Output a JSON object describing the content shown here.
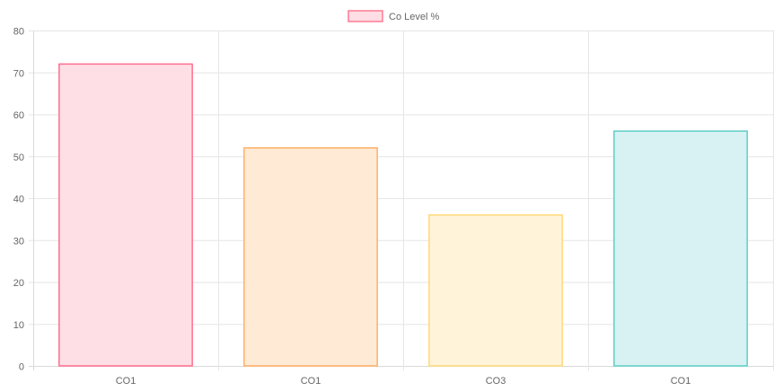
{
  "chart_data": {
    "type": "bar",
    "categories": [
      "CO1",
      "CO1",
      "CO3",
      "CO1"
    ],
    "series": [
      {
        "name": "Co Level %",
        "values": [
          72,
          52,
          36,
          56
        ]
      }
    ],
    "ylim": [
      0,
      80
    ],
    "yticks": [
      0,
      10,
      20,
      30,
      40,
      50,
      60,
      70,
      80
    ],
    "grid": true,
    "legend": {
      "position": "top-center",
      "label": "Co Level %",
      "fill": "#ffdde4",
      "stroke": "#ff7a94"
    },
    "bar_colors": [
      {
        "fill": "#ffdfe6",
        "stroke": "#ff6f8f"
      },
      {
        "fill": "#ffead6",
        "stroke": "#ffb065"
      },
      {
        "fill": "#fff3da",
        "stroke": "#ffd87a"
      },
      {
        "fill": "#d8f1f2",
        "stroke": "#5fcfc8"
      }
    ],
    "grid_color": "#e6e6e6",
    "axis_color": "#d9d9d9",
    "text_color": "#666666"
  }
}
